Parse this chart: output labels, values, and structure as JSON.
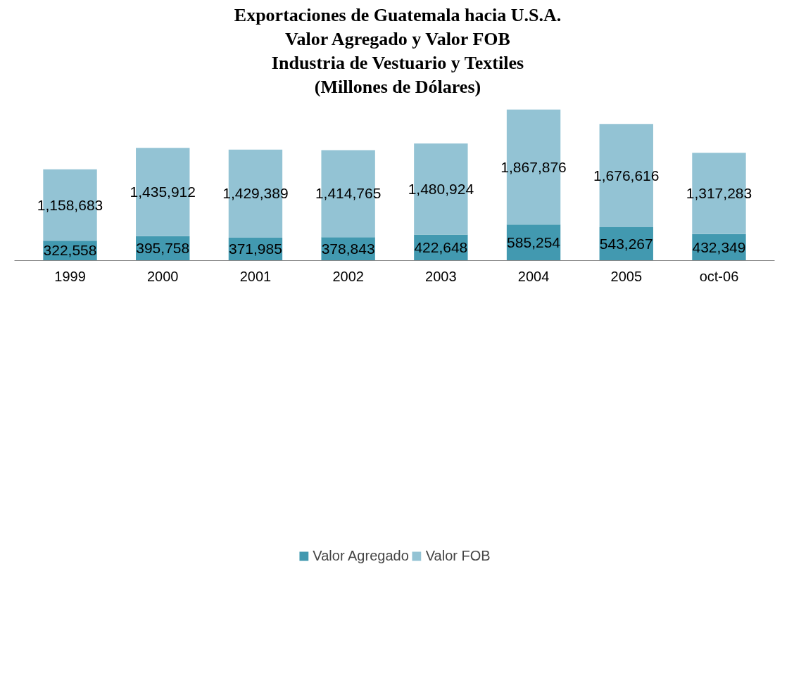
{
  "chart_data": {
    "type": "bar",
    "stacked": true,
    "title": "Exportaciones de Guatemala hacia U.S.A.\nValor Agregado y Valor FOB\nIndustria de Vestuario y Textiles\n(Millones de Dólares)",
    "categories": [
      "1999",
      "2000",
      "2001",
      "2002",
      "2003",
      "2004",
      "2005",
      "oct-06"
    ],
    "series": [
      {
        "name": "Valor Agregado",
        "color": "#4299b0",
        "values": [
          322558,
          395758,
          371985,
          378843,
          422648,
          585254,
          543267,
          432349
        ],
        "value_labels": [
          "322,558",
          "395,758",
          "371,985",
          "378,843",
          "422,648",
          "585,254",
          "543,267",
          "432,349"
        ]
      },
      {
        "name": "Valor FOB",
        "color": "#93c3d4",
        "values": [
          1158683,
          1435912,
          1429389,
          1414765,
          1480924,
          1867876,
          1676616,
          1317283
        ],
        "value_labels": [
          "1,158,683",
          "1,435,912",
          "1,429,389",
          "1,414,765",
          "1,480,924",
          "1,867,876",
          "1,676,616",
          "1,317,283"
        ]
      }
    ],
    "grid": false,
    "legend": "bottom"
  }
}
